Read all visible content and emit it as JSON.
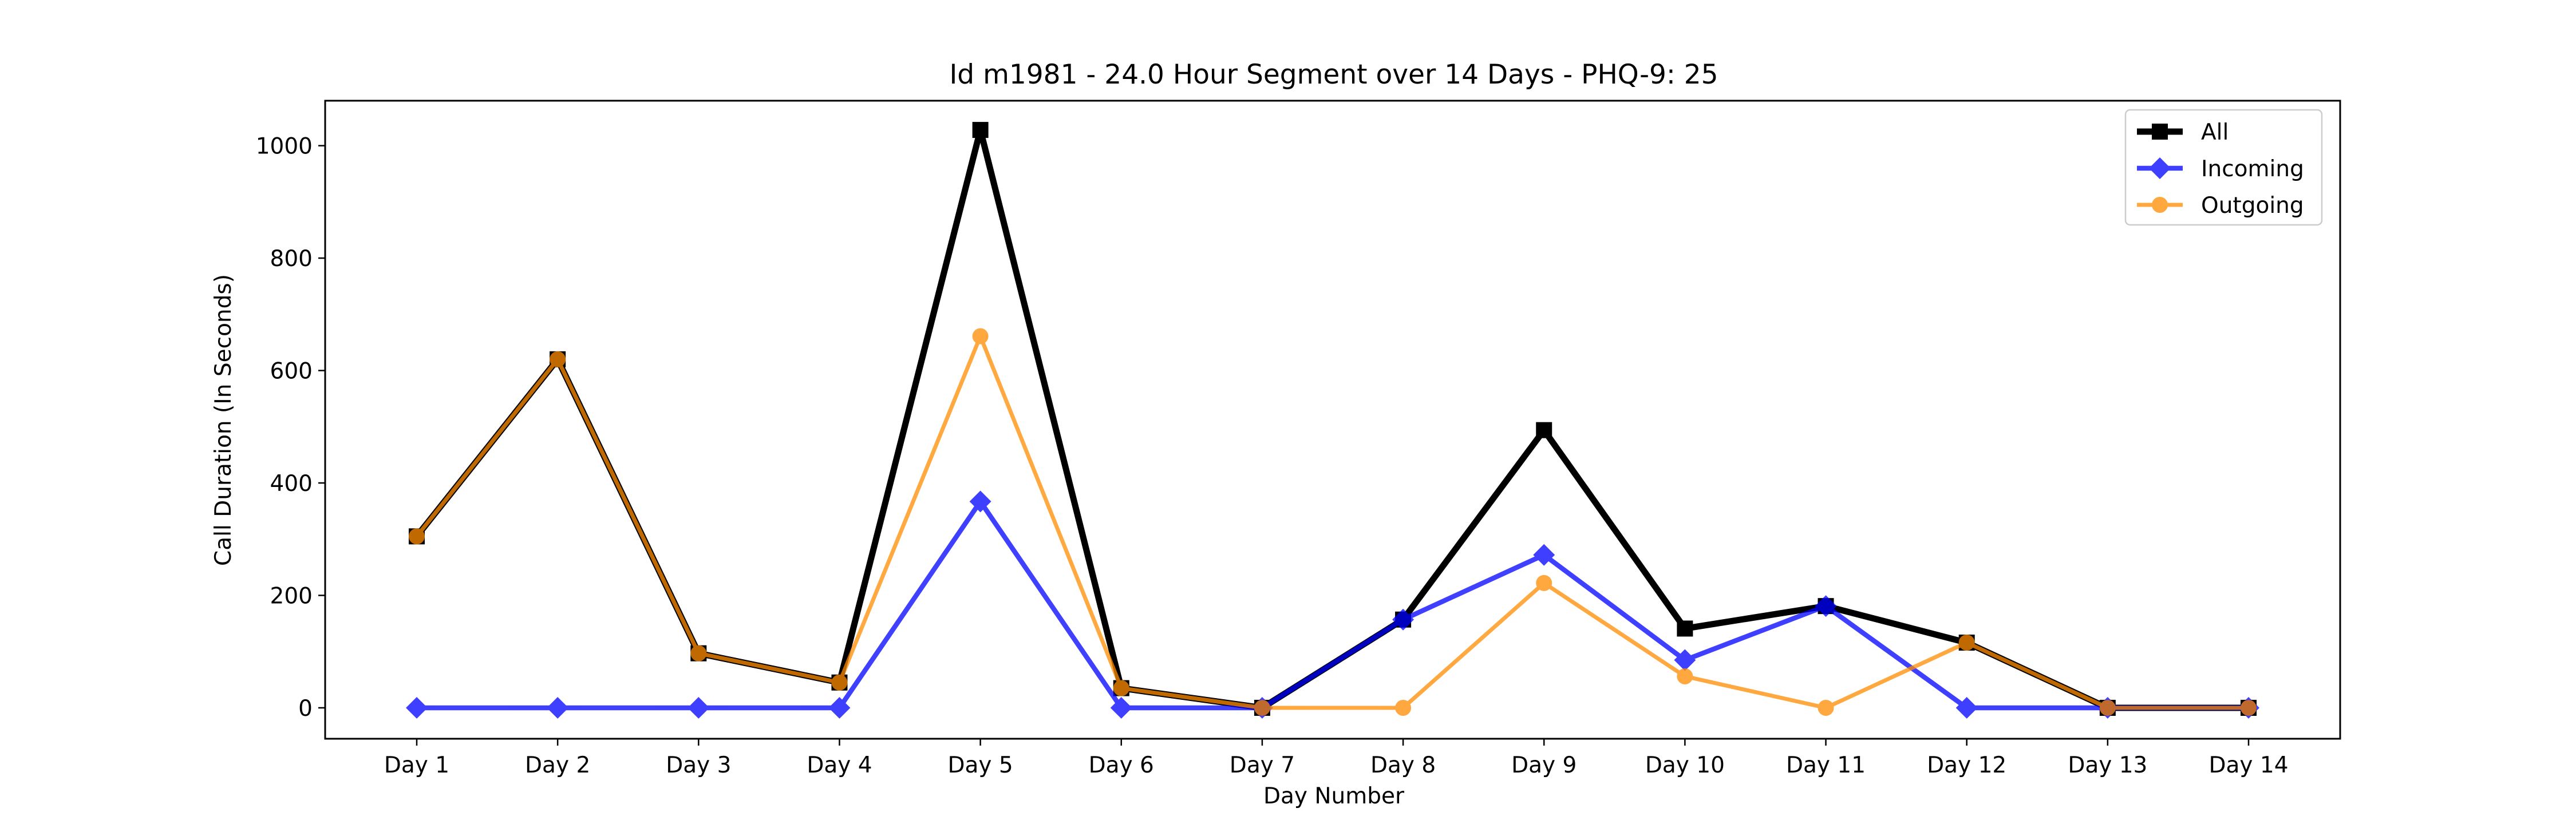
{
  "chart_data": {
    "type": "line",
    "title": "Id m1981 - 24.0 Hour Segment over 14 Days - PHQ-9: 25",
    "xlabel": "Day Number",
    "ylabel": "Call Duration (In Seconds)",
    "categories": [
      "Day 1",
      "Day 2",
      "Day 3",
      "Day 4",
      "Day 5",
      "Day 6",
      "Day 7",
      "Day 8",
      "Day 9",
      "Day 10",
      "Day 11",
      "Day 12",
      "Day 13",
      "Day 14"
    ],
    "ylim": [
      -55,
      1080
    ],
    "yticks": [
      0,
      200,
      400,
      600,
      800,
      1000
    ],
    "grid": false,
    "legend_position": "top-right",
    "series": [
      {
        "name": "All",
        "color": "#000000",
        "marker": "square",
        "values": [
          305,
          620,
          97,
          45,
          1028,
          35,
          0,
          157,
          494,
          141,
          181,
          116,
          0,
          0
        ]
      },
      {
        "name": "Incoming",
        "color": "#0000ff",
        "marker": "diamond",
        "values": [
          0,
          0,
          0,
          0,
          367,
          0,
          0,
          157,
          272,
          85,
          181,
          0,
          0,
          0
        ]
      },
      {
        "name": "Outgoing",
        "color": "#ff8c00",
        "marker": "circle",
        "values": [
          305,
          620,
          97,
          45,
          661,
          35,
          0,
          0,
          222,
          56,
          0,
          116,
          0,
          0
        ]
      }
    ]
  }
}
